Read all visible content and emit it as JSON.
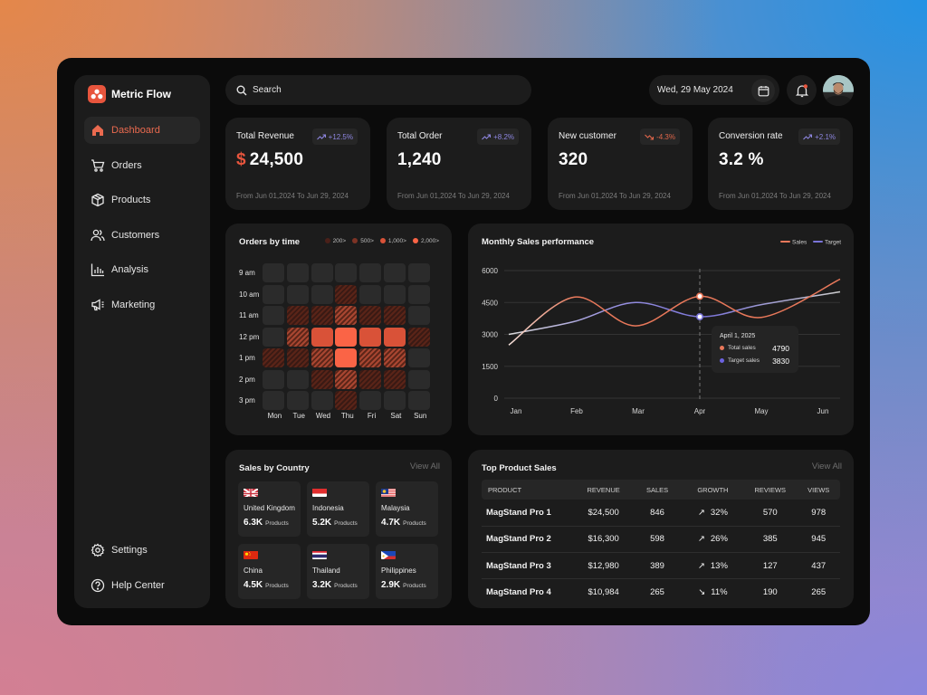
{
  "app": {
    "name": "Metric Flow",
    "brand_color": "#e8553d"
  },
  "sidebar": {
    "items": [
      {
        "label": "Dashboard",
        "icon": "home-icon",
        "active": true
      },
      {
        "label": "Orders",
        "icon": "cart-icon"
      },
      {
        "label": "Products",
        "icon": "box-icon"
      },
      {
        "label": "Customers",
        "icon": "users-icon"
      },
      {
        "label": "Analysis",
        "icon": "bar-chart-icon"
      },
      {
        "label": "Marketing",
        "icon": "megaphone-icon"
      }
    ],
    "bottom": [
      {
        "label": "Settings",
        "icon": "gear-icon"
      },
      {
        "label": "Help Center",
        "icon": "help-icon"
      }
    ]
  },
  "header": {
    "search_placeholder": "Search",
    "date": "Wed, 29 May 2024",
    "notification_dot": true
  },
  "stats": [
    {
      "label": "Total Revenue",
      "currency": "$",
      "value": "24,500",
      "change": "+12.5%",
      "trend": "up",
      "range": "From Jun 01,2024 To Jun 29, 2024"
    },
    {
      "label": "Total Order",
      "currency": "",
      "value": "1,240",
      "change": "+8.2%",
      "trend": "up",
      "range": "From Jun 01,2024 To Jun 29, 2024"
    },
    {
      "label": "New customer",
      "currency": "",
      "value": "320",
      "change": "-4.3%",
      "trend": "down",
      "range": "From Jun 01,2024 To Jun 29, 2024"
    },
    {
      "label": "Conversion rate",
      "currency": "",
      "value": "3.2 %",
      "change": "+2.1%",
      "trend": "up",
      "range": "From Jun 01,2024 To Jun 29, 2024"
    }
  ],
  "orders_by_time": {
    "title": "Orders by time",
    "legend": [
      {
        "label": "200>",
        "color": "#4a2019"
      },
      {
        "label": "500>",
        "color": "#7d3325"
      },
      {
        "label": "1,000>",
        "color": "#d95238"
      },
      {
        "label": "2,000>",
        "color": "#fa6446"
      }
    ],
    "hours": [
      "9 am",
      "10 am",
      "11 am",
      "12 pm",
      "1 pm",
      "2 pm",
      "3 pm"
    ],
    "days": [
      "Mon",
      "Tue",
      "Wed",
      "Thu",
      "Fri",
      "Sat",
      "Sun"
    ],
    "levels": [
      [
        0,
        0,
        0,
        0,
        0,
        0,
        0
      ],
      [
        0,
        0,
        0,
        1,
        0,
        0,
        0
      ],
      [
        0,
        1,
        1,
        2,
        1,
        1,
        0
      ],
      [
        0,
        2,
        3,
        4,
        3,
        3,
        1
      ],
      [
        1,
        1,
        2,
        4,
        2,
        2,
        0
      ],
      [
        0,
        0,
        1,
        2,
        1,
        1,
        0
      ],
      [
        0,
        0,
        0,
        1,
        0,
        0,
        0
      ]
    ]
  },
  "chart_data": {
    "type": "line",
    "title": "Monthly Sales performance",
    "x": [
      "Jan",
      "Feb",
      "Mar",
      "Apr",
      "May",
      "Jun"
    ],
    "series": [
      {
        "name": "Sales",
        "color": "#e9785a",
        "values": [
          2500,
          4750,
          3400,
          4790,
          3800,
          5600
        ]
      },
      {
        "name": "Target",
        "color": "#7a74d8",
        "values": [
          3000,
          3600,
          4500,
          3830,
          4400,
          5000
        ]
      }
    ],
    "yticks": [
      0,
      1500,
      3000,
      4500,
      6000
    ],
    "ylim": [
      0,
      6000
    ],
    "grid": true,
    "legend": "top-right",
    "tooltip": {
      "date": "April 1, 2025",
      "index": 3,
      "rows": [
        {
          "label": "Total sales",
          "value": "4790",
          "color": "#e9785a"
        },
        {
          "label": "Target sales",
          "value": "3830",
          "color": "#6b62e0"
        }
      ]
    }
  },
  "countries": {
    "title": "Sales by Country",
    "view_all": "View All",
    "unit": "Products",
    "items": [
      {
        "name": "United Kingdom",
        "value": "6.3K",
        "flag": "uk"
      },
      {
        "name": "Indonesia",
        "value": "5.2K",
        "flag": "id"
      },
      {
        "name": "Malaysia",
        "value": "4.7K",
        "flag": "my"
      },
      {
        "name": "China",
        "value": "4.5K",
        "flag": "cn"
      },
      {
        "name": "Thailand",
        "value": "3.2K",
        "flag": "th"
      },
      {
        "name": "Philippines",
        "value": "2.9K",
        "flag": "ph"
      }
    ]
  },
  "top_products": {
    "title": "Top Product Sales",
    "view_all": "View All",
    "columns": [
      "PRODUCT",
      "REVENUE",
      "SALES",
      "GROWTH",
      "REVIEWS",
      "VIEWS"
    ],
    "rows": [
      {
        "product": "MagStand Pro 1",
        "revenue": "$24,500",
        "sales": "846",
        "growth": "32%",
        "trend": "up",
        "reviews": "570",
        "views": "978"
      },
      {
        "product": "MagStand Pro 2",
        "revenue": "$16,300",
        "sales": "598",
        "growth": "26%",
        "trend": "up",
        "reviews": "385",
        "views": "945"
      },
      {
        "product": "MagStand Pro 3",
        "revenue": "$12,980",
        "sales": "389",
        "growth": "13%",
        "trend": "up",
        "reviews": "127",
        "views": "437"
      },
      {
        "product": "MagStand Pro 4",
        "revenue": "$10,984",
        "sales": "265",
        "growth": "11%",
        "trend": "down",
        "reviews": "190",
        "views": "265"
      }
    ]
  }
}
